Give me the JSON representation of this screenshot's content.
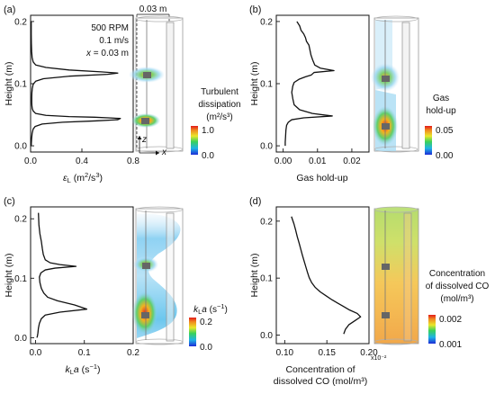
{
  "chart_data": [
    {
      "type": "line",
      "panel_label": "(a)",
      "ylabel": "Height (m)",
      "xlabel_main": "ε",
      "xlabel_sub": "L",
      "xlabel_unit": "(m",
      "xlabel_sup": "2",
      "xlabel_unit2": "/s",
      "xlabel_sup2": "3",
      "xlabel_end": ")",
      "xlim": [
        0,
        0.8
      ],
      "ylim": [
        -0.01,
        0.21
      ],
      "xticks": [
        "0.0",
        "0.4",
        "0.8"
      ],
      "xtick_values": [
        0,
        0.4,
        0.8
      ],
      "yticks": [
        "0.0",
        "0.1",
        "0.2"
      ],
      "ytick_values": [
        0,
        0.1,
        0.2
      ],
      "annotations": [
        "500 RPM",
        "0.1 m/s",
        "x = 0.03 m"
      ],
      "dimension_label": "0.03 m",
      "axis_x_label": "x",
      "axis_z_label": "z",
      "colorbar": {
        "title": [
          "Turbulent",
          "dissipation",
          "(m²/s³)"
        ],
        "max": "1.0",
        "min": "0.0"
      },
      "x": [
        0.005,
        0.005,
        0.006,
        0.008,
        0.012,
        0.02,
        0.04,
        0.12,
        0.3,
        0.55,
        0.68,
        0.6,
        0.3,
        0.1,
        0.04,
        0.02,
        0.013,
        0.01,
        0.009,
        0.009,
        0.01,
        0.013,
        0.02,
        0.04,
        0.12,
        0.3,
        0.5,
        0.7,
        0.68,
        0.5,
        0.25,
        0.09,
        0.035,
        0.02,
        0.012,
        0.008,
        0.006,
        0.005
      ],
      "y": [
        0.2,
        0.18,
        0.165,
        0.152,
        0.142,
        0.135,
        0.13,
        0.126,
        0.122,
        0.119,
        0.117,
        0.115,
        0.112,
        0.108,
        0.104,
        0.099,
        0.092,
        0.085,
        0.078,
        0.07,
        0.065,
        0.06,
        0.056,
        0.052,
        0.049,
        0.047,
        0.046,
        0.044,
        0.042,
        0.04,
        0.038,
        0.035,
        0.031,
        0.027,
        0.02,
        0.012,
        0.005,
        0.0
      ]
    },
    {
      "type": "line",
      "panel_label": "(b)",
      "ylabel": "Height (m)",
      "xlabel": "Gas hold-up",
      "xlim": [
        -0.002,
        0.025
      ],
      "ylim": [
        -0.01,
        0.21
      ],
      "xticks": [
        "0.00",
        "0.01",
        "0.02"
      ],
      "xtick_values": [
        0,
        0.01,
        0.02
      ],
      "yticks": [
        "0.0",
        "0.1",
        "0.2"
      ],
      "ytick_values": [
        0,
        0.1,
        0.2
      ],
      "colorbar": {
        "title": [
          "Gas",
          "hold-up"
        ],
        "max": "0.05",
        "min": "0.00"
      },
      "x": [
        0.004,
        0.0048,
        0.0052,
        0.006,
        0.0065,
        0.0068,
        0.0075,
        0.0078,
        0.0081,
        0.0086,
        0.0092,
        0.0108,
        0.0148,
        0.009,
        0.0082,
        0.0065,
        0.0046,
        0.0032,
        0.0028,
        0.0025,
        0.0028,
        0.0032,
        0.0048,
        0.0085,
        0.0143,
        0.006,
        0.0025,
        0.0015,
        0.001,
        0.0008,
        0.0007,
        0.0006,
        0.0006
      ],
      "y": [
        0.2,
        0.193,
        0.186,
        0.18,
        0.174,
        0.168,
        0.162,
        0.154,
        0.146,
        0.138,
        0.13,
        0.125,
        0.121,
        0.118,
        0.114,
        0.111,
        0.107,
        0.102,
        0.096,
        0.086,
        0.076,
        0.066,
        0.058,
        0.052,
        0.048,
        0.045,
        0.042,
        0.038,
        0.033,
        0.025,
        0.015,
        0.006,
        0.0
      ]
    },
    {
      "type": "line",
      "panel_label": "(c)",
      "ylabel": "Height (m)",
      "xlabel_main": "k",
      "xlabel_sub": "L",
      "xlabel_unit": "a (s",
      "xlabel_sup": "−1",
      "xlabel_end": ")",
      "xlim": [
        -0.01,
        0.2
      ],
      "ylim": [
        -0.01,
        0.22
      ],
      "xticks": [
        "0.0",
        "0.1",
        "0.2"
      ],
      "xtick_values": [
        0,
        0.1,
        0.2
      ],
      "yticks": [
        "0.0",
        "0.1",
        "0.2"
      ],
      "ytick_values": [
        0,
        0.1,
        0.2
      ],
      "colorbar": {
        "title_main": "k",
        "title_sub": "L",
        "title_rest": "a (s",
        "title_sup": "−1",
        "title_end": ")",
        "max": "0.2",
        "min": "0.0"
      },
      "x": [
        0.006,
        0.007,
        0.009,
        0.012,
        0.014,
        0.016,
        0.02,
        0.03,
        0.05,
        0.083,
        0.04,
        0.02,
        0.011,
        0.008,
        0.009,
        0.012,
        0.017,
        0.025,
        0.045,
        0.08,
        0.105,
        0.05,
        0.02,
        0.012,
        0.008,
        0.006,
        0.005,
        0.004,
        0.003
      ],
      "y": [
        0.21,
        0.19,
        0.175,
        0.162,
        0.15,
        0.14,
        0.131,
        0.126,
        0.123,
        0.12,
        0.117,
        0.114,
        0.109,
        0.102,
        0.093,
        0.083,
        0.075,
        0.068,
        0.062,
        0.055,
        0.048,
        0.043,
        0.038,
        0.032,
        0.024,
        0.016,
        0.008,
        0.003,
        0.0
      ]
    },
    {
      "type": "line",
      "panel_label": "(d)",
      "ylabel": "Height (m)",
      "xlabel": [
        "Concentration of",
        "dissolved CO (mol/m³)"
      ],
      "xlim": [
        0.09,
        0.2
      ],
      "ylim": [
        -0.015,
        0.225
      ],
      "xticks": [
        "0.10",
        "0.15",
        "0.20"
      ],
      "xtick_values": [
        0.1,
        0.15,
        0.2
      ],
      "x_multiplier": "x10⁻²",
      "yticks": [
        "0.0",
        "0.1",
        "0.2"
      ],
      "ytick_values": [
        0,
        0.1,
        0.2
      ],
      "colorbar": {
        "title": [
          "Concentration",
          "of dissolved CO",
          "(mol/m³)"
        ],
        "max": "0.002",
        "min": "0.001"
      },
      "x": [
        0.108,
        0.111,
        0.113,
        0.115,
        0.117,
        0.119,
        0.121,
        0.123,
        0.125,
        0.127,
        0.129,
        0.132,
        0.136,
        0.142,
        0.149,
        0.156,
        0.163,
        0.17,
        0.177,
        0.186,
        0.19,
        0.183,
        0.176,
        0.172,
        0.17
      ],
      "y": [
        0.208,
        0.195,
        0.184,
        0.172,
        0.162,
        0.151,
        0.14,
        0.13,
        0.12,
        0.11,
        0.101,
        0.092,
        0.084,
        0.076,
        0.069,
        0.062,
        0.056,
        0.05,
        0.044,
        0.038,
        0.032,
        0.025,
        0.018,
        0.01,
        0.002
      ]
    }
  ]
}
